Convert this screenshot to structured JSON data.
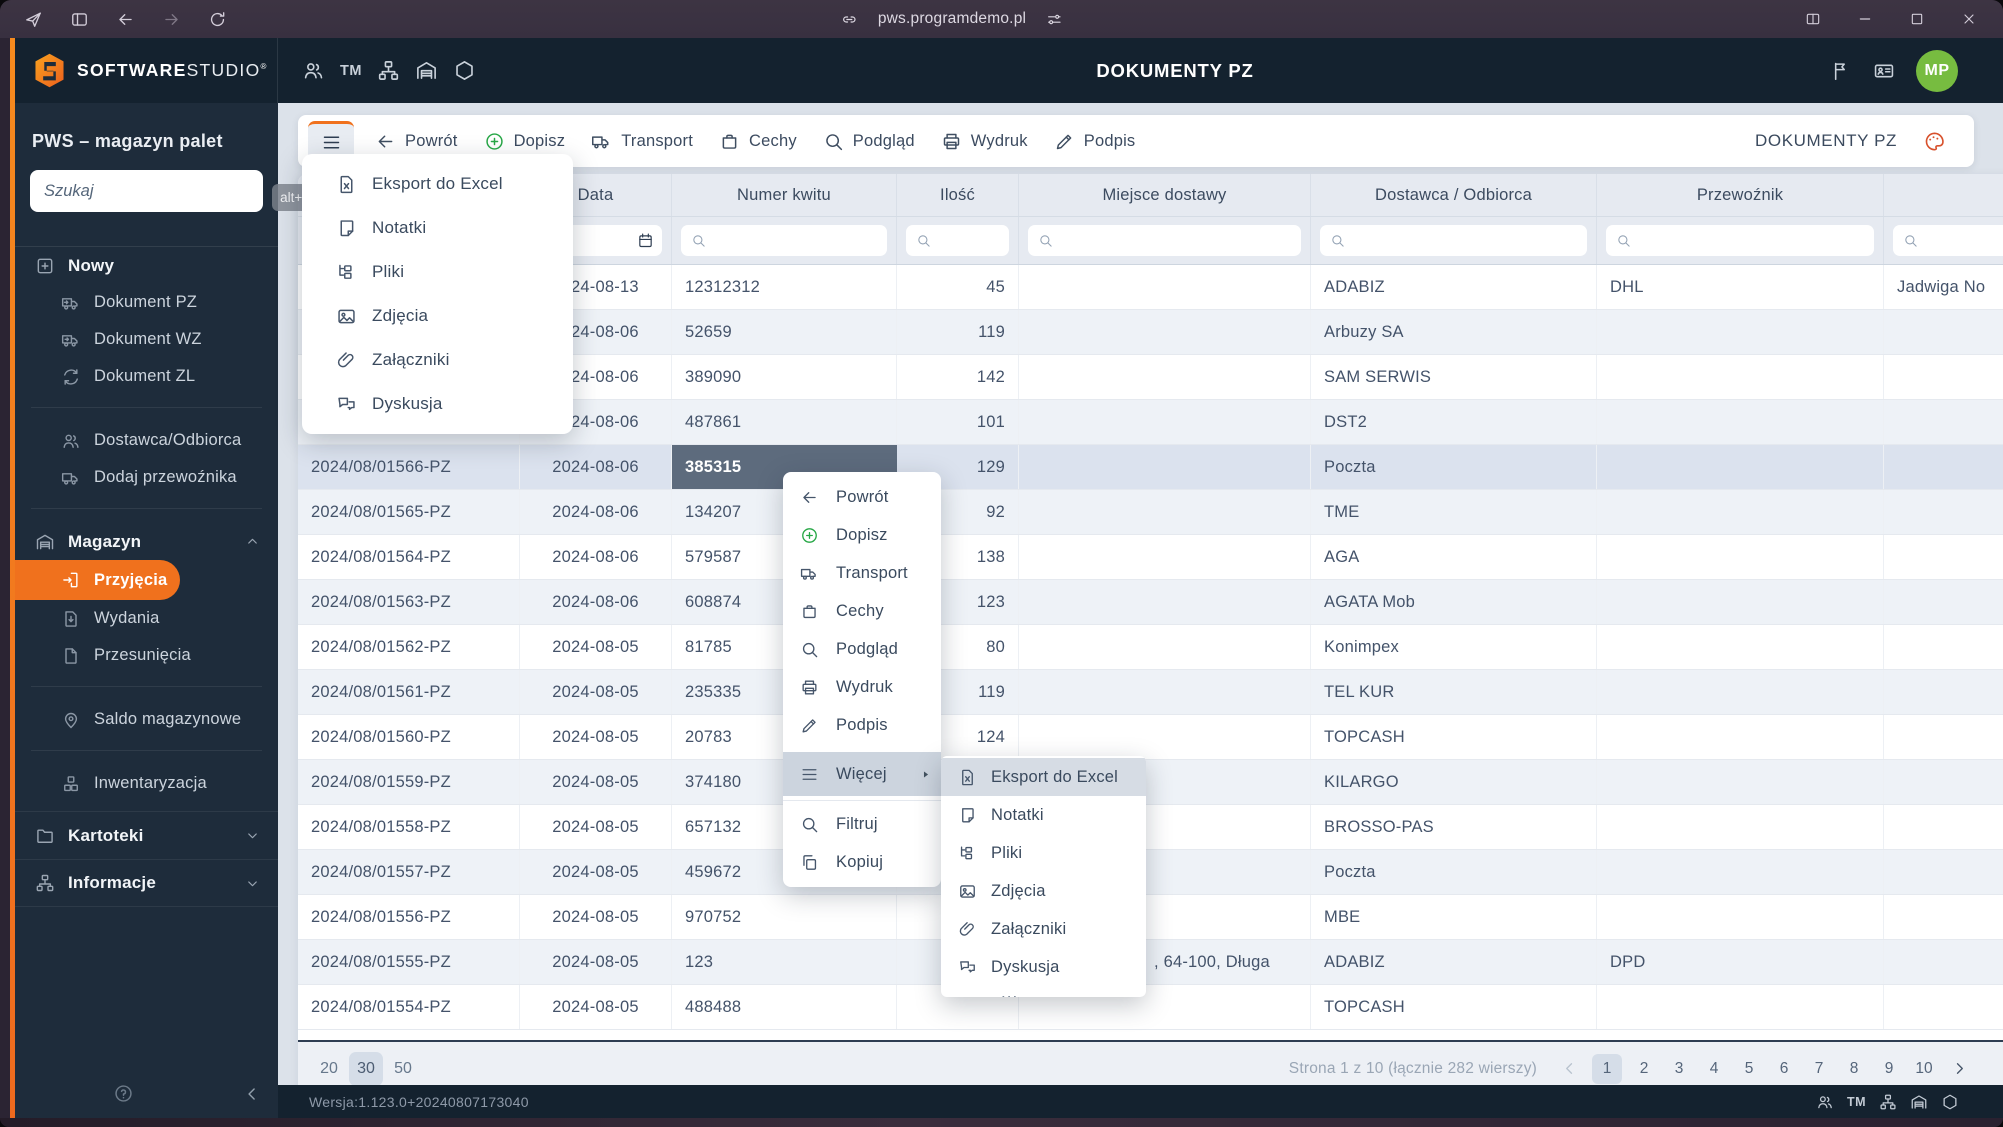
{
  "browser": {
    "url": "pws.programdemo.pl"
  },
  "app_header": {
    "brand_bold": "SOFTWARE",
    "brand_light": "STUDIO",
    "brand_mark": "®",
    "title": "DOKUMENTY PZ",
    "avatar_initials": "MP",
    "quick_links": [
      {
        "icon": "users"
      },
      {
        "text": "TM"
      },
      {
        "icon": "sitemap"
      },
      {
        "icon": "warehouse"
      },
      {
        "icon": "hexagon"
      }
    ]
  },
  "sidebar": {
    "app_title": "PWS – magazyn palet",
    "search_placeholder": "Szukaj",
    "shortcut_badge": "alt+g",
    "items": [
      {
        "id": "nowy",
        "label": "Nowy",
        "icon": "plus-square",
        "level": 1
      },
      {
        "id": "dokument-pz",
        "label": "Dokument PZ",
        "icon": "truck-in",
        "level": 2
      },
      {
        "id": "dokument-wz",
        "label": "Dokument WZ",
        "icon": "truck-out",
        "level": 2
      },
      {
        "id": "dokument-zl",
        "label": "Dokument ZL",
        "icon": "refresh",
        "level": 2
      },
      {
        "divider": true
      },
      {
        "id": "dostawca-odbiorca",
        "label": "Dostawca/Odbiorca",
        "icon": "users",
        "level": 2
      },
      {
        "id": "dodaj-przewoznika",
        "label": "Dodaj przewoźnika",
        "icon": "truck",
        "level": 2
      },
      {
        "divider": true
      },
      {
        "id": "magazyn",
        "label": "Magazyn",
        "icon": "warehouse",
        "level": 1,
        "chevron": "up"
      },
      {
        "id": "przyjecia",
        "label": "Przyjęcia",
        "icon": "file-in",
        "level": 2,
        "active": true
      },
      {
        "id": "wydania",
        "label": "Wydania",
        "icon": "file-down",
        "level": 2
      },
      {
        "id": "przesuniecia",
        "label": "Przesunięcia",
        "icon": "file",
        "level": 2
      },
      {
        "divider": true
      },
      {
        "id": "saldo-magazynowe",
        "label": "Saldo magazynowe",
        "icon": "pin",
        "level": 2
      },
      {
        "divider": true
      },
      {
        "id": "inwentaryzacja",
        "label": "Inwentaryzacja",
        "icon": "cubes",
        "level": 2
      },
      {
        "id": "kartoteki",
        "label": "Kartoteki",
        "icon": "folder",
        "level": 1,
        "chevron": "down",
        "row": true
      },
      {
        "id": "informacje",
        "label": "Informacje",
        "icon": "sitemap",
        "level": 1,
        "chevron": "down",
        "row": true,
        "rowlast": true
      }
    ]
  },
  "toolbar": {
    "items": [
      {
        "id": "powrot",
        "label": "Powrót",
        "icon": "arrow-left"
      },
      {
        "id": "dopisz",
        "label": "Dopisz",
        "icon": "plus-circle",
        "green": true
      },
      {
        "id": "transport",
        "label": "Transport",
        "icon": "truck"
      },
      {
        "id": "cechy",
        "label": "Cechy",
        "icon": "bag"
      },
      {
        "id": "podglad",
        "label": "Podgląd",
        "icon": "search"
      },
      {
        "id": "wydruk",
        "label": "Wydruk",
        "icon": "printer"
      },
      {
        "id": "podpis",
        "label": "Podpis",
        "icon": "pen"
      }
    ],
    "right_title": "DOKUMENTY PZ"
  },
  "hamburger_menu": {
    "items": [
      {
        "id": "eksport-do-excel",
        "label": "Eksport do Excel",
        "icon": "excel"
      },
      {
        "id": "notatki",
        "label": "Notatki",
        "icon": "note"
      },
      {
        "id": "pliki",
        "label": "Pliki",
        "icon": "files"
      },
      {
        "id": "zdjecia",
        "label": "Zdjęcia",
        "icon": "image"
      },
      {
        "id": "zalaczniki",
        "label": "Załączniki",
        "icon": "paperclip"
      },
      {
        "id": "dyskusja",
        "label": "Dyskusja",
        "icon": "chat"
      }
    ]
  },
  "context_menu": {
    "items": [
      {
        "id": "powrot",
        "label": "Powrót",
        "icon": "arrow-left"
      },
      {
        "id": "dopisz",
        "label": "Dopisz",
        "icon": "plus-circle",
        "green": true
      },
      {
        "id": "transport",
        "label": "Transport",
        "icon": "truck"
      },
      {
        "id": "cechy",
        "label": "Cechy",
        "icon": "bag"
      },
      {
        "id": "podglad",
        "label": "Podgląd",
        "icon": "search"
      },
      {
        "id": "wydruk",
        "label": "Wydruk",
        "icon": "printer"
      },
      {
        "id": "podpis",
        "label": "Podpis",
        "icon": "pen"
      }
    ],
    "more_label": "Więcej",
    "extra_items": [
      {
        "id": "filtruj",
        "label": "Filtruj",
        "icon": "search"
      },
      {
        "id": "kopiuj",
        "label": "Kopiuj",
        "icon": "copy"
      }
    ]
  },
  "context_submenu": {
    "items": [
      {
        "id": "eksport-do-excel",
        "label": "Eksport do Excel",
        "icon": "excel",
        "highlighted": true
      },
      {
        "id": "notatki",
        "label": "Notatki",
        "icon": "note"
      },
      {
        "id": "pliki",
        "label": "Pliki",
        "icon": "files"
      },
      {
        "id": "zdjecia",
        "label": "Zdjęcia",
        "icon": "image"
      },
      {
        "id": "zalaczniki",
        "label": "Załączniki",
        "icon": "paperclip"
      },
      {
        "id": "dyskusja",
        "label": "Dyskusja",
        "icon": "chat"
      }
    ],
    "overflow": "..."
  },
  "table": {
    "columns": [
      "",
      "Data",
      "Numer kwitu",
      "Ilość",
      "Miejsce dostawy",
      "Dostawca / Odbiorca",
      "Przewoźnik",
      ""
    ],
    "rows": [
      {
        "doc": "",
        "date": "2024-08-13",
        "receipt": "12312312",
        "qty": "45",
        "place": "",
        "supplier": "ADABIZ",
        "carrier": "DHL",
        "extra": "Jadwiga No"
      },
      {
        "doc": "",
        "date": "2024-08-06",
        "receipt": "52659",
        "qty": "119",
        "place": "",
        "supplier": "Arbuzy SA",
        "carrier": "",
        "extra": ""
      },
      {
        "doc": "",
        "date": "2024-08-06",
        "receipt": "389090",
        "qty": "142",
        "place": "",
        "supplier": "SAM SERWIS",
        "carrier": "",
        "extra": ""
      },
      {
        "doc": "",
        "date": "2024-08-06",
        "receipt": "487861",
        "qty": "101",
        "place": "",
        "supplier": "DST2",
        "carrier": "",
        "extra": ""
      },
      {
        "doc": "2024/08/01566-PZ",
        "date": "2024-08-06",
        "receipt": "385315",
        "qty": "129",
        "place": "",
        "supplier": "Poczta",
        "carrier": "",
        "extra": "",
        "selected": true,
        "selected_cell": "receipt"
      },
      {
        "doc": "2024/08/01565-PZ",
        "date": "2024-08-06",
        "receipt": "134207",
        "qty": "92",
        "place": "",
        "supplier": "TME",
        "carrier": "",
        "extra": ""
      },
      {
        "doc": "2024/08/01564-PZ",
        "date": "2024-08-06",
        "receipt": "579587",
        "qty": "138",
        "place": "",
        "supplier": "AGA",
        "carrier": "",
        "extra": ""
      },
      {
        "doc": "2024/08/01563-PZ",
        "date": "2024-08-06",
        "receipt": "608874",
        "qty": "123",
        "place": "",
        "supplier": "AGATA Mob",
        "carrier": "",
        "extra": ""
      },
      {
        "doc": "2024/08/01562-PZ",
        "date": "2024-08-05",
        "receipt": "81785",
        "qty": "80",
        "place": "",
        "supplier": "Konimpex",
        "carrier": "",
        "extra": ""
      },
      {
        "doc": "2024/08/01561-PZ",
        "date": "2024-08-05",
        "receipt": "235335",
        "qty": "119",
        "place": "",
        "supplier": "TEL KUR",
        "carrier": "",
        "extra": ""
      },
      {
        "doc": "2024/08/01560-PZ",
        "date": "2024-08-05",
        "receipt": "20783",
        "qty": "124",
        "place": "",
        "supplier": "TOPCASH",
        "carrier": "",
        "extra": ""
      },
      {
        "doc": "2024/08/01559-PZ",
        "date": "2024-08-05",
        "receipt": "374180",
        "qty": "",
        "place": "",
        "supplier": "KILARGO",
        "carrier": "",
        "extra": ""
      },
      {
        "doc": "2024/08/01558-PZ",
        "date": "2024-08-05",
        "receipt": "657132",
        "qty": "",
        "place": "",
        "supplier": "BROSSO-PAS",
        "carrier": "",
        "extra": ""
      },
      {
        "doc": "2024/08/01557-PZ",
        "date": "2024-08-05",
        "receipt": "459672",
        "qty": "",
        "place": "",
        "supplier": "Poczta",
        "carrier": "",
        "extra": ""
      },
      {
        "doc": "2024/08/01556-PZ",
        "date": "2024-08-05",
        "receipt": "970752",
        "qty": "",
        "place": "",
        "supplier": "MBE",
        "carrier": "",
        "extra": ""
      },
      {
        "doc": "2024/08/01555-PZ",
        "date": "2024-08-05",
        "receipt": "123",
        "qty": "",
        "place": ", 64-100, Długa",
        "supplier": "ADABIZ",
        "carrier": "DPD",
        "extra": ""
      },
      {
        "doc": "2024/08/01554-PZ",
        "date": "2024-08-05",
        "receipt": "488488",
        "qty": "",
        "place": "",
        "supplier": "TOPCASH",
        "carrier": "",
        "extra": ""
      }
    ]
  },
  "pagination": {
    "sizes": [
      "20",
      "30",
      "50"
    ],
    "selected_size": "30",
    "info": "Strona 1 z 10 (łącznie 282 wierszy)",
    "pages": [
      "1",
      "2",
      "3",
      "4",
      "5",
      "6",
      "7",
      "8",
      "9",
      "10"
    ],
    "current_page": "1"
  },
  "statusbar": {
    "version": "Wersja:1.123.0+20240807173040",
    "quick_links": [
      {
        "icon": "users"
      },
      {
        "text": "TM"
      },
      {
        "icon": "sitemap"
      },
      {
        "icon": "warehouse"
      },
      {
        "icon": "hexagon"
      }
    ]
  }
}
